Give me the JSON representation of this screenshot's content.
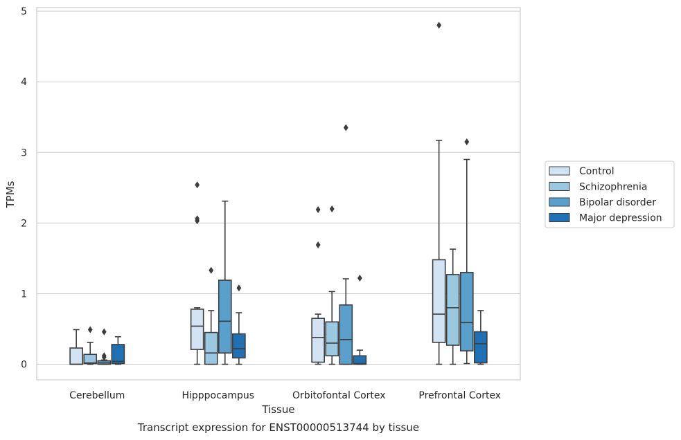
{
  "chart_data": {
    "type": "box",
    "title": "",
    "caption": "Transcript expression for ENST00000513744 by tissue",
    "xlabel": "Tissue",
    "ylabel": "TPMs",
    "ylim": [
      -0.22,
      5.05
    ],
    "yticks": [
      0,
      1,
      2,
      3,
      4,
      5
    ],
    "grid": "horizontal",
    "legend_position": "right",
    "categories": [
      "Cerebellum",
      "Hipppocampus",
      "Orbitofontal Cortex",
      "Prefrontal Cortex"
    ],
    "series": [
      {
        "name": "Control",
        "color": "#d2e3f3",
        "boxes": [
          {
            "whisker_low": 0,
            "q1": 0,
            "median": 0,
            "q3": 0.23,
            "whisker_high": 0.49,
            "outliers": []
          },
          {
            "whisker_low": 0,
            "q1": 0.21,
            "median": 0.54,
            "q3": 0.78,
            "whisker_high": 0.8,
            "outliers": [
              2.54,
              2.06,
              2.03
            ]
          },
          {
            "whisker_low": 0,
            "q1": 0.03,
            "median": 0.38,
            "q3": 0.65,
            "whisker_high": 0.71,
            "outliers": [
              2.19,
              1.69
            ]
          },
          {
            "whisker_low": 0,
            "q1": 0.31,
            "median": 0.71,
            "q3": 1.48,
            "whisker_high": 3.17,
            "outliers": [
              4.8
            ]
          }
        ]
      },
      {
        "name": "Schizophrenia",
        "color": "#9ac8e0",
        "boxes": [
          {
            "whisker_low": 0,
            "q1": 0.01,
            "median": 0.02,
            "q3": 0.14,
            "whisker_high": 0.31,
            "outliers": [
              0.49
            ]
          },
          {
            "whisker_low": 0,
            "q1": 0,
            "median": 0.16,
            "q3": 0.45,
            "whisker_high": 0.76,
            "outliers": [
              1.33
            ]
          },
          {
            "whisker_low": 0,
            "q1": 0.12,
            "median": 0.3,
            "q3": 0.6,
            "whisker_high": 1.03,
            "outliers": [
              2.2
            ]
          },
          {
            "whisker_low": 0,
            "q1": 0.27,
            "median": 0.8,
            "q3": 1.27,
            "whisker_high": 1.63,
            "outliers": []
          }
        ]
      },
      {
        "name": "Bipolar disorder",
        "color": "#5aa0cd",
        "boxes": [
          {
            "whisker_low": 0,
            "q1": 0,
            "median": 0.02,
            "q3": 0.05,
            "whisker_high": 0.06,
            "outliers": [
              0.46,
              0.12,
              0.1
            ]
          },
          {
            "whisker_low": 0,
            "q1": 0.16,
            "median": 0.61,
            "q3": 1.19,
            "whisker_high": 2.31,
            "outliers": []
          },
          {
            "whisker_low": 0,
            "q1": 0,
            "median": 0.35,
            "q3": 0.84,
            "whisker_high": 1.21,
            "outliers": [
              3.35
            ]
          },
          {
            "whisker_low": 0.01,
            "q1": 0.19,
            "median": 0.59,
            "q3": 1.3,
            "whisker_high": 2.9,
            "outliers": [
              3.15
            ]
          }
        ]
      },
      {
        "name": "Major depression",
        "color": "#2070b4",
        "boxes": [
          {
            "whisker_low": 0,
            "q1": 0.01,
            "median": 0.04,
            "q3": 0.28,
            "whisker_high": 0.39,
            "outliers": []
          },
          {
            "whisker_low": 0,
            "q1": 0.09,
            "median": 0.22,
            "q3": 0.43,
            "whisker_high": 0.73,
            "outliers": [
              1.08
            ]
          },
          {
            "whisker_low": 0,
            "q1": 0,
            "median": 0.01,
            "q3": 0.12,
            "whisker_high": 0.2,
            "outliers": [
              1.22
            ]
          },
          {
            "whisker_low": 0,
            "q1": 0.02,
            "median": 0.29,
            "q3": 0.46,
            "whisker_high": 0.76,
            "outliers": []
          }
        ]
      }
    ]
  }
}
